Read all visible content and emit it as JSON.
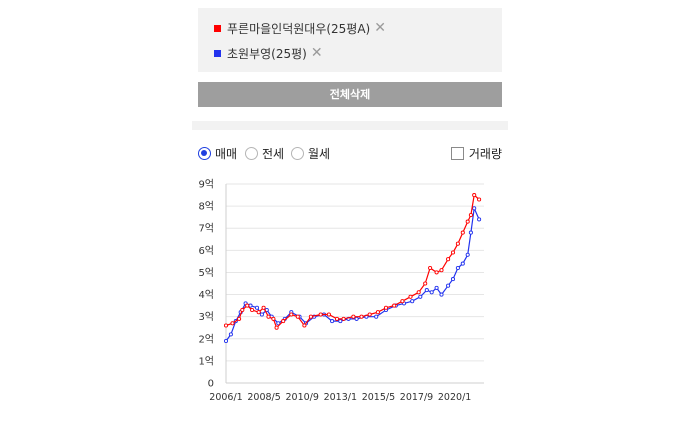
{
  "legend": [
    {
      "label": "푸른마을인덕원대우(25평A)",
      "color": "#ff0000",
      "close": "✕"
    },
    {
      "label": "초원부영(25평)",
      "color": "#2233ee",
      "close": "✕"
    }
  ],
  "delete_all_label": "전체삭제",
  "options": {
    "radios": [
      {
        "label": "매매",
        "selected": true
      },
      {
        "label": "전세",
        "selected": false
      },
      {
        "label": "월세",
        "selected": false
      }
    ],
    "volume_label": "거래량",
    "volume_checked": false
  },
  "chart_data": {
    "type": "line",
    "ylim": [
      0,
      9
    ],
    "y_ticks": [
      "0",
      "1억",
      "2억",
      "3억",
      "4억",
      "5억",
      "6억",
      "7억",
      "8억",
      "9억"
    ],
    "x_ticks": [
      "2006/1",
      "2008/5",
      "2010/9",
      "2013/1",
      "2015/5",
      "2017/9",
      "2020/1"
    ],
    "x_range": [
      2006.0,
      2021.8
    ],
    "grid": true,
    "series": [
      {
        "name": "푸른마을인덕원대우(25평A)",
        "color": "#ff0000",
        "points": [
          [
            2006.0,
            2.6
          ],
          [
            2006.4,
            2.7
          ],
          [
            2006.8,
            2.9
          ],
          [
            2007.0,
            3.3
          ],
          [
            2007.3,
            3.5
          ],
          [
            2007.6,
            3.3
          ],
          [
            2008.0,
            3.2
          ],
          [
            2008.3,
            3.4
          ],
          [
            2008.6,
            3.0
          ],
          [
            2008.9,
            2.9
          ],
          [
            2009.1,
            2.5
          ],
          [
            2009.5,
            2.8
          ],
          [
            2010.0,
            3.1
          ],
          [
            2010.4,
            3.0
          ],
          [
            2010.8,
            2.6
          ],
          [
            2011.2,
            3.0
          ],
          [
            2011.8,
            3.1
          ],
          [
            2012.3,
            3.1
          ],
          [
            2012.8,
            2.9
          ],
          [
            2013.2,
            2.9
          ],
          [
            2013.8,
            3.0
          ],
          [
            2014.3,
            3.0
          ],
          [
            2014.8,
            3.1
          ],
          [
            2015.3,
            3.2
          ],
          [
            2015.8,
            3.4
          ],
          [
            2016.3,
            3.5
          ],
          [
            2016.8,
            3.7
          ],
          [
            2017.3,
            3.9
          ],
          [
            2017.8,
            4.1
          ],
          [
            2018.2,
            4.5
          ],
          [
            2018.5,
            5.2
          ],
          [
            2018.9,
            5.0
          ],
          [
            2019.2,
            5.1
          ],
          [
            2019.6,
            5.6
          ],
          [
            2019.9,
            5.9
          ],
          [
            2020.2,
            6.3
          ],
          [
            2020.5,
            6.8
          ],
          [
            2020.8,
            7.3
          ],
          [
            2021.0,
            7.6
          ],
          [
            2021.2,
            8.5
          ],
          [
            2021.5,
            8.3
          ]
        ]
      },
      {
        "name": "초원부영(25평)",
        "color": "#2233ee",
        "points": [
          [
            2006.0,
            1.9
          ],
          [
            2006.3,
            2.2
          ],
          [
            2006.6,
            2.8
          ],
          [
            2006.9,
            3.2
          ],
          [
            2007.2,
            3.6
          ],
          [
            2007.5,
            3.5
          ],
          [
            2007.9,
            3.4
          ],
          [
            2008.2,
            3.1
          ],
          [
            2008.5,
            3.3
          ],
          [
            2008.8,
            3.0
          ],
          [
            2009.2,
            2.7
          ],
          [
            2009.6,
            2.9
          ],
          [
            2010.0,
            3.2
          ],
          [
            2010.5,
            3.0
          ],
          [
            2010.9,
            2.7
          ],
          [
            2011.4,
            3.0
          ],
          [
            2012.0,
            3.1
          ],
          [
            2012.5,
            2.8
          ],
          [
            2013.0,
            2.8
          ],
          [
            2013.5,
            2.9
          ],
          [
            2014.0,
            2.9
          ],
          [
            2014.6,
            3.0
          ],
          [
            2015.2,
            3.0
          ],
          [
            2015.8,
            3.3
          ],
          [
            2016.4,
            3.5
          ],
          [
            2016.9,
            3.6
          ],
          [
            2017.4,
            3.7
          ],
          [
            2017.9,
            3.9
          ],
          [
            2018.3,
            4.2
          ],
          [
            2018.6,
            4.1
          ],
          [
            2018.9,
            4.3
          ],
          [
            2019.2,
            4.0
          ],
          [
            2019.6,
            4.4
          ],
          [
            2019.9,
            4.7
          ],
          [
            2020.2,
            5.2
          ],
          [
            2020.5,
            5.4
          ],
          [
            2020.8,
            5.8
          ],
          [
            2021.0,
            6.8
          ],
          [
            2021.2,
            7.9
          ],
          [
            2021.5,
            7.4
          ]
        ]
      }
    ]
  }
}
